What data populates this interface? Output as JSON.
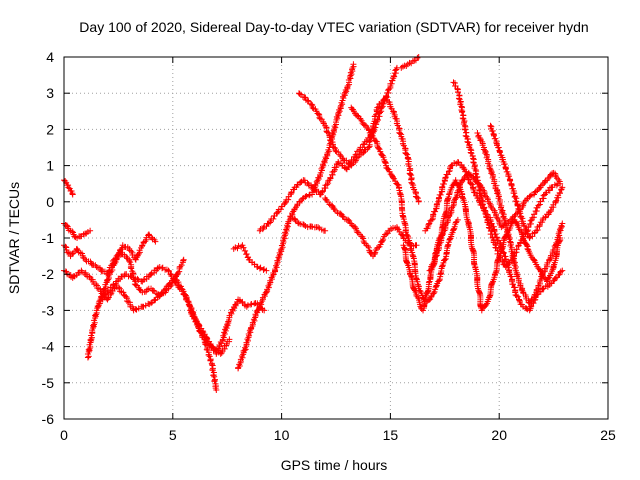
{
  "chart_data": {
    "type": "scatter",
    "title": "Day 100 of 2020, Sidereal Day-to-day VTEC variation (SDTVAR) for receiver hydn",
    "xlabel": "GPS time / hours",
    "ylabel": "SDTVAR / TECUs",
    "xlim": [
      0,
      25
    ],
    "ylim": [
      -6,
      4
    ],
    "xticks": [
      "0",
      "5",
      "10",
      "15",
      "20",
      "25"
    ],
    "yticks": [
      "-6",
      "-5",
      "-4",
      "-3",
      "-2",
      "-1",
      "0",
      "1",
      "2",
      "3",
      "4"
    ],
    "grid": true,
    "marker": "+",
    "color": "#ff0000",
    "series": [
      {
        "values": [
          [
            0.0,
            0.6
          ],
          [
            0.2,
            0.4
          ],
          [
            0.4,
            0.2
          ]
        ]
      },
      {
        "values": [
          [
            0.0,
            -0.6
          ],
          [
            0.3,
            -0.8
          ],
          [
            0.6,
            -1.0
          ],
          [
            0.9,
            -0.9
          ],
          [
            1.2,
            -0.8
          ]
        ]
      },
      {
        "values": [
          [
            0.0,
            -1.2
          ],
          [
            0.3,
            -1.5
          ],
          [
            0.6,
            -1.3
          ],
          [
            1.0,
            -1.6
          ],
          [
            1.5,
            -1.8
          ],
          [
            2.0,
            -2.0
          ],
          [
            2.3,
            -1.6
          ],
          [
            2.6,
            -1.4
          ],
          [
            3.0,
            -1.6
          ],
          [
            3.3,
            -2.3
          ],
          [
            3.6,
            -2.5
          ],
          [
            4.0,
            -2.4
          ],
          [
            4.4,
            -2.6
          ],
          [
            4.8,
            -2.4
          ],
          [
            5.2,
            -2.0
          ],
          [
            5.5,
            -1.6
          ]
        ]
      },
      {
        "values": [
          [
            0.0,
            -1.9
          ],
          [
            0.4,
            -2.1
          ],
          [
            0.8,
            -1.9
          ],
          [
            1.2,
            -2.1
          ],
          [
            1.6,
            -2.4
          ],
          [
            2.0,
            -2.7
          ],
          [
            2.4,
            -2.3
          ],
          [
            2.8,
            -2.6
          ],
          [
            3.2,
            -3.0
          ],
          [
            3.6,
            -2.9
          ],
          [
            4.0,
            -2.8
          ],
          [
            4.4,
            -2.6
          ],
          [
            4.8,
            -2.3
          ],
          [
            5.1,
            -2.1
          ],
          [
            5.4,
            -2.4
          ],
          [
            5.8,
            -2.9
          ],
          [
            6.2,
            -3.5
          ],
          [
            6.5,
            -3.9
          ],
          [
            6.8,
            -4.5
          ],
          [
            7.0,
            -5.2
          ]
        ]
      },
      {
        "values": [
          [
            1.1,
            -4.3
          ],
          [
            1.3,
            -3.6
          ],
          [
            1.5,
            -3.0
          ],
          [
            1.8,
            -2.5
          ],
          [
            2.1,
            -2.0
          ],
          [
            2.4,
            -1.6
          ],
          [
            2.7,
            -1.2
          ],
          [
            3.0,
            -1.3
          ],
          [
            3.3,
            -1.6
          ],
          [
            3.6,
            -1.2
          ],
          [
            3.9,
            -0.9
          ],
          [
            4.2,
            -1.1
          ]
        ]
      },
      {
        "values": [
          [
            1.6,
            -2.8
          ],
          [
            2.0,
            -2.5
          ],
          [
            2.4,
            -2.2
          ],
          [
            2.8,
            -2.0
          ],
          [
            3.2,
            -2.1
          ],
          [
            3.6,
            -2.2
          ],
          [
            4.0,
            -2.0
          ],
          [
            4.4,
            -1.8
          ],
          [
            4.8,
            -1.9
          ],
          [
            5.2,
            -2.3
          ],
          [
            5.6,
            -2.6
          ],
          [
            6.0,
            -3.2
          ],
          [
            6.4,
            -3.6
          ],
          [
            6.8,
            -4.0
          ],
          [
            7.2,
            -4.2
          ],
          [
            7.6,
            -3.8
          ]
        ]
      },
      {
        "values": [
          [
            5.8,
            -3.0
          ],
          [
            6.2,
            -3.5
          ],
          [
            6.6,
            -3.9
          ],
          [
            7.0,
            -4.2
          ],
          [
            7.3,
            -3.8
          ],
          [
            7.6,
            -3.2
          ],
          [
            8.0,
            -2.7
          ],
          [
            8.4,
            -2.9
          ],
          [
            8.8,
            -2.8
          ],
          [
            9.2,
            -3.0
          ]
        ]
      },
      {
        "values": [
          [
            7.8,
            -1.3
          ],
          [
            8.2,
            -1.2
          ],
          [
            8.5,
            -1.6
          ],
          [
            8.9,
            -1.8
          ],
          [
            9.3,
            -1.9
          ]
        ]
      },
      {
        "values": [
          [
            8.0,
            -4.6
          ],
          [
            8.3,
            -4.1
          ],
          [
            8.6,
            -3.5
          ],
          [
            8.9,
            -3.0
          ],
          [
            9.3,
            -2.5
          ],
          [
            9.7,
            -1.9
          ],
          [
            10.0,
            -1.3
          ],
          [
            10.3,
            -0.6
          ],
          [
            10.6,
            -0.2
          ],
          [
            11.0,
            0.1
          ],
          [
            11.4,
            0.2
          ],
          [
            11.8,
            0.8
          ],
          [
            12.2,
            1.5
          ],
          [
            12.5,
            2.2
          ],
          [
            12.8,
            2.8
          ],
          [
            13.1,
            3.3
          ],
          [
            13.3,
            3.8
          ]
        ]
      },
      {
        "values": [
          [
            9.0,
            -0.8
          ],
          [
            9.4,
            -0.6
          ],
          [
            9.8,
            -0.3
          ],
          [
            10.2,
            0.0
          ],
          [
            10.6,
            0.4
          ],
          [
            11.0,
            0.6
          ],
          [
            11.4,
            0.4
          ],
          [
            11.8,
            0.2
          ],
          [
            12.2,
            0.6
          ],
          [
            12.6,
            1.1
          ],
          [
            13.0,
            0.9
          ],
          [
            13.4,
            1.3
          ],
          [
            13.8,
            1.6
          ],
          [
            14.2,
            1.9
          ],
          [
            14.6,
            2.6
          ],
          [
            15.0,
            3.2
          ],
          [
            15.3,
            3.7
          ]
        ]
      },
      {
        "values": [
          [
            10.4,
            -0.4
          ],
          [
            10.8,
            -0.6
          ],
          [
            11.2,
            -0.7
          ],
          [
            11.6,
            -0.7
          ],
          [
            12.0,
            -0.8
          ]
        ]
      },
      {
        "values": [
          [
            10.8,
            3.0
          ],
          [
            11.2,
            2.8
          ],
          [
            11.6,
            2.5
          ],
          [
            12.0,
            2.1
          ],
          [
            12.4,
            1.5
          ],
          [
            12.8,
            1.2
          ],
          [
            13.2,
            1.0
          ],
          [
            13.6,
            1.3
          ],
          [
            14.0,
            1.5
          ],
          [
            14.4,
            2.6
          ],
          [
            14.8,
            2.9
          ],
          [
            15.2,
            2.4
          ],
          [
            15.5,
            1.8
          ],
          [
            15.8,
            1.2
          ],
          [
            16.0,
            0.5
          ],
          [
            16.3,
            0.0
          ]
        ]
      },
      {
        "values": [
          [
            12.0,
            0.1
          ],
          [
            12.4,
            -0.2
          ],
          [
            12.8,
            -0.4
          ],
          [
            13.2,
            -0.6
          ],
          [
            13.6,
            -0.9
          ],
          [
            13.9,
            -1.2
          ],
          [
            14.2,
            -1.5
          ],
          [
            14.6,
            -1.1
          ],
          [
            14.9,
            -0.8
          ],
          [
            15.3,
            -0.7
          ],
          [
            15.6,
            -1.0
          ],
          [
            15.9,
            -1.2
          ],
          [
            16.2,
            -1.2
          ]
        ]
      },
      {
        "values": [
          [
            13.2,
            2.6
          ],
          [
            13.6,
            2.3
          ],
          [
            14.0,
            2.0
          ],
          [
            14.4,
            1.6
          ],
          [
            14.8,
            1.0
          ],
          [
            15.1,
            0.7
          ],
          [
            15.4,
            0.4
          ],
          [
            15.7,
            -0.8
          ],
          [
            16.0,
            -1.4
          ],
          [
            16.3,
            -2.4
          ],
          [
            16.6,
            -2.8
          ],
          [
            16.9,
            -2.6
          ],
          [
            17.2,
            -2.2
          ],
          [
            17.5,
            -1.6
          ],
          [
            17.8,
            -0.9
          ],
          [
            18.1,
            -0.5
          ]
        ]
      },
      {
        "values": [
          [
            15.5,
            3.7
          ],
          [
            15.8,
            3.8
          ],
          [
            16.1,
            3.9
          ],
          [
            16.3,
            4.0
          ]
        ]
      },
      {
        "values": [
          [
            15.6,
            -1.2
          ],
          [
            15.9,
            -2.0
          ],
          [
            16.2,
            -2.6
          ],
          [
            16.5,
            -3.0
          ],
          [
            16.8,
            -2.2
          ],
          [
            17.1,
            -1.4
          ],
          [
            17.4,
            -0.7
          ],
          [
            17.7,
            0.2
          ],
          [
            18.0,
            0.6
          ],
          [
            18.3,
            0.2
          ],
          [
            18.6,
            -0.6
          ],
          [
            18.9,
            -1.8
          ],
          [
            19.2,
            -3.0
          ],
          [
            19.5,
            -2.7
          ],
          [
            19.8,
            -2.0
          ],
          [
            20.1,
            -1.3
          ],
          [
            20.4,
            -0.8
          ],
          [
            20.7,
            -0.5
          ],
          [
            21.0,
            -0.8
          ],
          [
            21.3,
            -1.3
          ],
          [
            21.6,
            -1.6
          ],
          [
            21.9,
            -1.9
          ],
          [
            22.2,
            -2.2
          ],
          [
            22.5,
            -1.8
          ],
          [
            22.8,
            -1.0
          ]
        ]
      },
      {
        "values": [
          [
            16.6,
            -0.8
          ],
          [
            16.9,
            -0.5
          ],
          [
            17.2,
            0.0
          ],
          [
            17.5,
            0.6
          ],
          [
            17.8,
            1.0
          ],
          [
            18.1,
            1.1
          ],
          [
            18.4,
            0.9
          ],
          [
            18.7,
            0.5
          ],
          [
            19.0,
            0.1
          ],
          [
            19.3,
            -0.2
          ],
          [
            19.6,
            -0.5
          ],
          [
            19.9,
            -1.0
          ],
          [
            20.2,
            -1.4
          ],
          [
            20.5,
            -2.0
          ],
          [
            20.8,
            -2.6
          ],
          [
            21.1,
            -2.9
          ],
          [
            21.4,
            -3.0
          ],
          [
            21.7,
            -2.6
          ],
          [
            22.0,
            -2.4
          ],
          [
            22.3,
            -2.3
          ],
          [
            22.6,
            -2.1
          ],
          [
            22.9,
            -1.9
          ]
        ]
      },
      {
        "values": [
          [
            16.8,
            -1.9
          ],
          [
            17.1,
            -1.5
          ],
          [
            17.4,
            -0.9
          ],
          [
            17.7,
            -0.4
          ],
          [
            18.0,
            0.1
          ],
          [
            18.3,
            0.6
          ],
          [
            18.6,
            0.8
          ],
          [
            18.9,
            0.6
          ],
          [
            19.2,
            0.4
          ],
          [
            19.5,
            0.0
          ],
          [
            19.8,
            -0.3
          ],
          [
            20.1,
            -0.7
          ],
          [
            20.4,
            -0.6
          ],
          [
            20.7,
            -0.4
          ],
          [
            21.0,
            -0.2
          ],
          [
            21.3,
            0.1
          ],
          [
            21.6,
            0.2
          ],
          [
            21.9,
            0.4
          ],
          [
            22.2,
            0.6
          ],
          [
            22.5,
            0.8
          ],
          [
            22.8,
            0.5
          ]
        ]
      },
      {
        "values": [
          [
            17.9,
            3.3
          ],
          [
            18.1,
            3.1
          ],
          [
            18.3,
            2.5
          ],
          [
            18.5,
            1.8
          ],
          [
            18.8,
            1.2
          ],
          [
            19.1,
            0.3
          ],
          [
            19.4,
            -0.4
          ],
          [
            19.7,
            -1.0
          ],
          [
            20.0,
            -1.5
          ],
          [
            20.3,
            -1.8
          ],
          [
            20.6,
            -1.6
          ],
          [
            20.9,
            -1.2
          ],
          [
            21.2,
            -0.9
          ],
          [
            21.5,
            -0.5
          ],
          [
            21.8,
            -0.1
          ],
          [
            22.1,
            0.2
          ],
          [
            22.4,
            0.4
          ],
          [
            22.7,
            0.5
          ]
        ]
      },
      {
        "values": [
          [
            19.0,
            1.9
          ],
          [
            19.3,
            1.5
          ],
          [
            19.6,
            0.9
          ],
          [
            19.9,
            0.3
          ],
          [
            20.2,
            -0.4
          ],
          [
            20.5,
            -1.1
          ],
          [
            20.8,
            -2.0
          ],
          [
            21.1,
            -2.5
          ],
          [
            21.4,
            -2.8
          ],
          [
            21.7,
            -2.5
          ],
          [
            22.0,
            -2.0
          ],
          [
            22.3,
            -1.6
          ],
          [
            22.6,
            -1.2
          ],
          [
            22.9,
            -0.6
          ]
        ]
      },
      {
        "values": [
          [
            19.6,
            2.1
          ],
          [
            19.9,
            1.6
          ],
          [
            20.2,
            1.1
          ],
          [
            20.5,
            0.6
          ],
          [
            20.8,
            0.0
          ],
          [
            21.1,
            -0.6
          ],
          [
            21.4,
            -1.0
          ],
          [
            21.7,
            -0.8
          ],
          [
            22.0,
            -0.5
          ],
          [
            22.3,
            -0.3
          ],
          [
            22.6,
            0.0
          ],
          [
            22.9,
            0.4
          ]
        ]
      }
    ]
  }
}
